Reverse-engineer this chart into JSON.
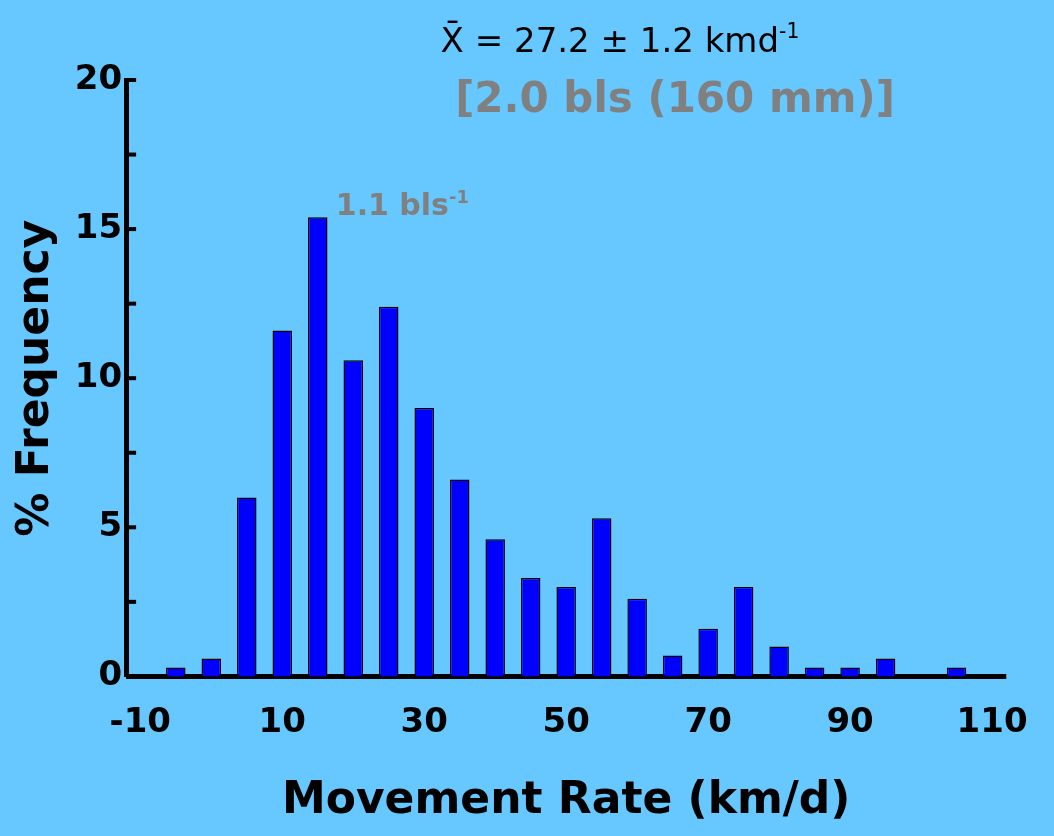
{
  "chart_data": {
    "type": "bar",
    "xlabel": "Movement Rate (km/d)",
    "ylabel": "% Frequency",
    "x": [
      -10,
      -5,
      0,
      5,
      10,
      15,
      20,
      25,
      30,
      35,
      40,
      45,
      50,
      55,
      60,
      65,
      70,
      75,
      80,
      85,
      90,
      95,
      100,
      105,
      110
    ],
    "values": [
      0,
      0.3,
      0.6,
      6.0,
      11.6,
      15.4,
      10.6,
      12.4,
      9.0,
      6.6,
      4.6,
      3.3,
      3.0,
      5.3,
      2.6,
      0.7,
      1.6,
      3.0,
      1.0,
      0.3,
      0.3,
      0.6,
      0,
      0.3,
      0
    ],
    "color": "#0000ff",
    "xlim": [
      -12,
      112
    ],
    "xticks": [
      -10,
      10,
      30,
      50,
      70,
      90,
      110
    ],
    "ylim": [
      0,
      20
    ],
    "yticks": [
      0,
      {
        "value": 2.5,
        "label": null
      },
      5,
      {
        "value": 7.5,
        "label": null
      },
      10,
      {
        "value": 12.5,
        "label": null
      },
      15,
      {
        "value": 17.5,
        "label": null
      },
      20
    ],
    "grid": false,
    "legend": false,
    "annotations": [
      "X̄ = 27.2 ± 1.2 kmd$^{-1}$",
      "[2.0 bls (160 mm)]",
      {
        "text": "1.1 bls$^{-1}$",
        "x": 15,
        "y": 15.4
      }
    ]
  }
}
